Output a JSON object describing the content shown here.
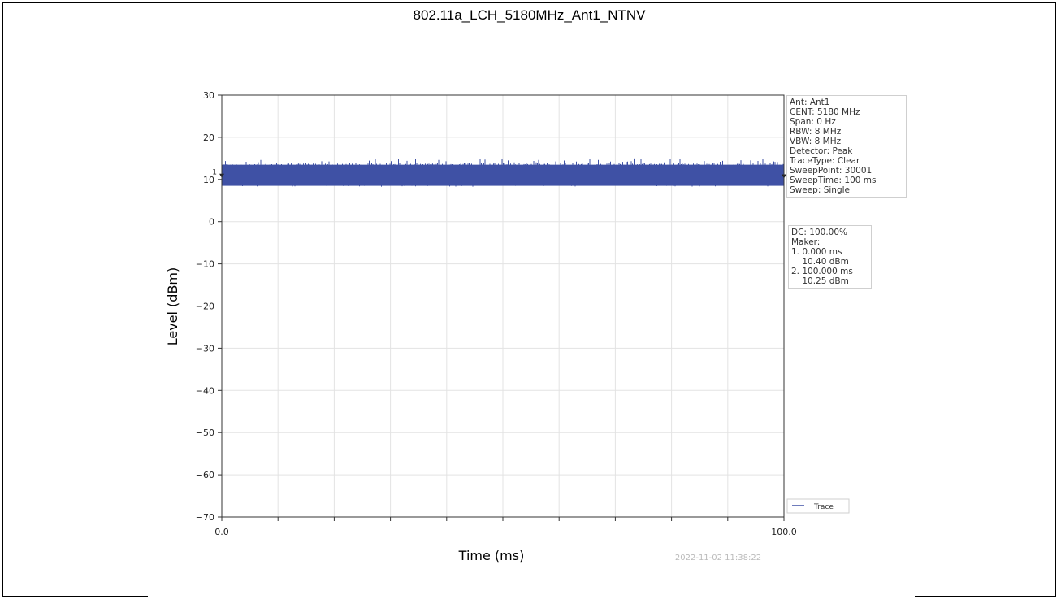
{
  "title": "802.11a_LCH_5180MHz_Ant1_NTNV",
  "settings_box": [
    "Ant: Ant1",
    "CENT: 5180 MHz",
    "Span: 0 Hz",
    "RBW: 8 MHz",
    "VBW: 8 MHz",
    "Detector: Peak",
    "TraceType: Clear",
    "SweepPoint: 30001",
    "SweepTime: 100 ms",
    "Sweep: Single"
  ],
  "marker_box": [
    "DC: 100.00%",
    "Maker:",
    "1. 0.000 ms",
    "    10.40 dBm",
    "2. 100.000 ms",
    "    10.25 dBm"
  ],
  "timestamp": "2022-11-02 11:38:22",
  "chart_data": {
    "type": "line",
    "xlabel": "Time (ms)",
    "ylabel": "Level (dBm)",
    "xlim": [
      0.0,
      100.0
    ],
    "ylim": [
      -70,
      30
    ],
    "x_tick_labels": [
      "0.0",
      "100.0"
    ],
    "y_ticks": [
      30,
      20,
      10,
      0,
      -10,
      -20,
      -30,
      -40,
      -50,
      -60,
      -70
    ],
    "y_tick_labels": [
      "30",
      "20",
      "10",
      "0",
      "−10",
      "−20",
      "−30",
      "−40",
      "−50",
      "−60",
      "−70"
    ],
    "grid": true,
    "legend_position": "bottom-right",
    "series": [
      {
        "name": "Trace",
        "color": "#3f51a5",
        "band_upper_dbm": 13.5,
        "band_lower_dbm": 8.5,
        "center_dbm": 11,
        "peak_max_dbm": 15,
        "peak_min_dbm": 8
      }
    ],
    "markers": [
      {
        "label": "1",
        "x_ms": 0.0,
        "y_dbm": 10.4
      },
      {
        "label": "2",
        "x_ms": 100.0,
        "y_dbm": 10.25
      }
    ]
  }
}
